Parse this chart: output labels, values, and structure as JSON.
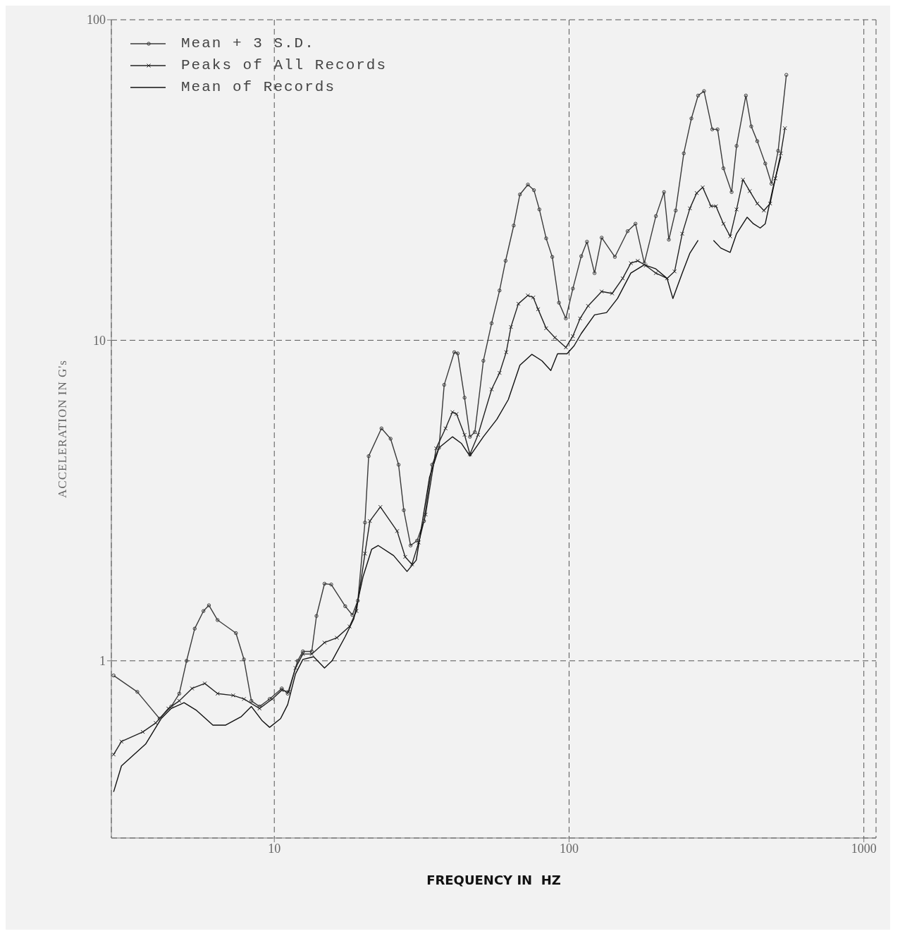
{
  "chart_data": {
    "type": "line",
    "xlabel": "FREQUENCY IN  HZ",
    "ylabel": "ACCELERATION IN G's",
    "log": "xy",
    "xlim": [
      2.8,
      1100
    ],
    "ylim": [
      0.28,
      100
    ],
    "xticks": [
      10,
      100,
      1000
    ],
    "yticks": [
      1,
      10,
      100
    ],
    "grid": true,
    "legend": "top left",
    "series": [
      {
        "name": "Mean + 3 S.D.",
        "color": "#3a3a3a",
        "marker": "circle",
        "x": [
          2.85,
          3.43,
          4.08,
          4.47,
          4.76,
          5.04,
          5.37,
          5.75,
          6.0,
          6.42,
          7.41,
          7.89,
          8.36,
          8.91,
          9.64,
          10.6,
          11.1,
          12.0,
          12.5,
          13.4,
          13.9,
          14.8,
          15.6,
          17.4,
          18.4,
          19.2,
          20.3,
          20.9,
          23.1,
          24.8,
          26.4,
          27.5,
          29.0,
          30.5,
          32.2,
          34.3,
          36.2,
          37.7,
          40.8,
          41.9,
          44.2,
          46.1,
          47.9,
          51.2,
          54.6,
          58.1,
          60.9,
          64.9,
          68.1,
          72.5,
          76.0,
          79.3,
          83.6,
          87.7,
          92.4,
          97.5,
          103,
          110,
          115,
          122,
          129,
          143,
          158,
          168,
          180,
          197,
          210,
          218,
          230,
          245,
          260,
          274,
          287,
          306,
          319,
          334,
          356,
          370,
          398,
          415,
          435,
          463,
          486,
          512,
          546
        ],
        "values": [
          0.9,
          0.8,
          0.66,
          0.72,
          0.79,
          1.0,
          1.26,
          1.43,
          1.49,
          1.34,
          1.22,
          1.01,
          0.75,
          0.72,
          0.76,
          0.82,
          0.79,
          1.0,
          1.07,
          1.07,
          1.38,
          1.74,
          1.73,
          1.48,
          1.39,
          1.54,
          2.7,
          4.35,
          5.31,
          4.93,
          4.09,
          2.95,
          2.29,
          2.37,
          2.73,
          4.09,
          4.62,
          7.26,
          9.18,
          9.1,
          6.62,
          5.0,
          5.17,
          8.63,
          11.3,
          14.3,
          17.7,
          22.8,
          28.5,
          30.6,
          29.4,
          25.6,
          20.8,
          18.2,
          13.1,
          11.7,
          14.5,
          18.3,
          20.3,
          16.2,
          20.9,
          18.2,
          21.9,
          23.1,
          17.4,
          24.4,
          29.0,
          20.6,
          25.4,
          38.3,
          49.2,
          58.0,
          59.9,
          45.5,
          45.5,
          34.4,
          29.0,
          40.4,
          58.0,
          46.5,
          41.8,
          35.6,
          30.8,
          39.0,
          67.3
        ]
      },
      {
        "name": "Peaks of All Records",
        "color": "#222222",
        "marker": "cross",
        "x": [
          2.85,
          3.03,
          3.58,
          3.96,
          4.37,
          4.76,
          5.26,
          5.81,
          6.42,
          7.25,
          7.89,
          8.91,
          9.84,
          10.6,
          11.2,
          11.8,
          12.5,
          13.4,
          14.8,
          16.3,
          18.0,
          19.0,
          20.3,
          21.1,
          22.9,
          26.1,
          27.8,
          29.3,
          30.9,
          32.6,
          35.4,
          38.1,
          40.2,
          41.5,
          44.2,
          46.1,
          49.1,
          54.6,
          58.1,
          61.2,
          63.5,
          67.3,
          72.5,
          75.6,
          78.5,
          83.6,
          89.5,
          97.5,
          103,
          109,
          116,
          129,
          140,
          152,
          162,
          171,
          182,
          197,
          215,
          228,
          242,
          257,
          271,
          284,
          303,
          315,
          334,
          352,
          370,
          389,
          410,
          435,
          458,
          481,
          501,
          523,
          540
        ],
        "values": [
          0.51,
          0.56,
          0.6,
          0.64,
          0.71,
          0.75,
          0.82,
          0.85,
          0.79,
          0.78,
          0.76,
          0.71,
          0.76,
          0.81,
          0.8,
          0.95,
          1.05,
          1.05,
          1.14,
          1.18,
          1.28,
          1.43,
          2.16,
          2.73,
          3.02,
          2.54,
          2.11,
          2.0,
          2.34,
          2.86,
          4.6,
          5.31,
          5.97,
          5.89,
          5.07,
          4.41,
          5.07,
          7.03,
          7.91,
          9.18,
          11.0,
          13.0,
          13.8,
          13.6,
          12.5,
          10.9,
          10.2,
          9.5,
          10.3,
          11.7,
          12.8,
          14.2,
          14.0,
          15.6,
          17.4,
          17.7,
          17.1,
          16.2,
          15.6,
          16.4,
          21.5,
          25.8,
          28.8,
          30.0,
          26.2,
          26.2,
          23.1,
          21.1,
          25.6,
          31.7,
          29.2,
          26.7,
          25.4,
          26.7,
          32.0,
          38.3,
          45.9
        ]
      },
      {
        "name": "Mean of Records",
        "color": "#111111",
        "marker": "none",
        "x": [
          2.85,
          3.03,
          3.66,
          4.13,
          4.47,
          4.94,
          5.45,
          6.19,
          6.84,
          7.73,
          8.36,
          9.1,
          9.64,
          10.5,
          11.1,
          11.8,
          12.5,
          13.6,
          14.8,
          15.7,
          17.4,
          18.6,
          20.0,
          21.4,
          22.5,
          25.4,
          28.2,
          30.3,
          33.6,
          36.2,
          40.2,
          43.1,
          46.1,
          51.2,
          56.9,
          62.2,
          68.1,
          74.8,
          80.9,
          86.7,
          91.4,
          98.4,
          104,
          110,
          122,
          134,
          146,
          162,
          180,
          197,
          215,
          225,
          242,
          257,
          274,
          290,
          309,
          327,
          352,
          370,
          402,
          422,
          445,
          463,
          491,
          523
        ],
        "values": [
          0.39,
          0.47,
          0.55,
          0.66,
          0.71,
          0.74,
          0.7,
          0.63,
          0.63,
          0.67,
          0.72,
          0.65,
          0.62,
          0.66,
          0.73,
          0.91,
          1.01,
          1.03,
          0.95,
          1.0,
          1.19,
          1.35,
          1.83,
          2.23,
          2.29,
          2.13,
          1.9,
          2.06,
          3.73,
          4.62,
          5.0,
          4.77,
          4.35,
          5.0,
          5.67,
          6.53,
          8.36,
          9.04,
          8.63,
          8.05,
          9.08,
          9.08,
          9.61,
          10.5,
          12.0,
          12.2,
          13.5,
          16.2,
          17.2,
          16.7,
          15.6,
          13.5,
          16.2,
          18.7,
          20.5,
          null,
          20.5,
          19.4,
          18.8,
          21.5,
          24.2,
          23.1,
          22.4,
          23.1,
          29.7,
          37.5
        ]
      }
    ]
  }
}
